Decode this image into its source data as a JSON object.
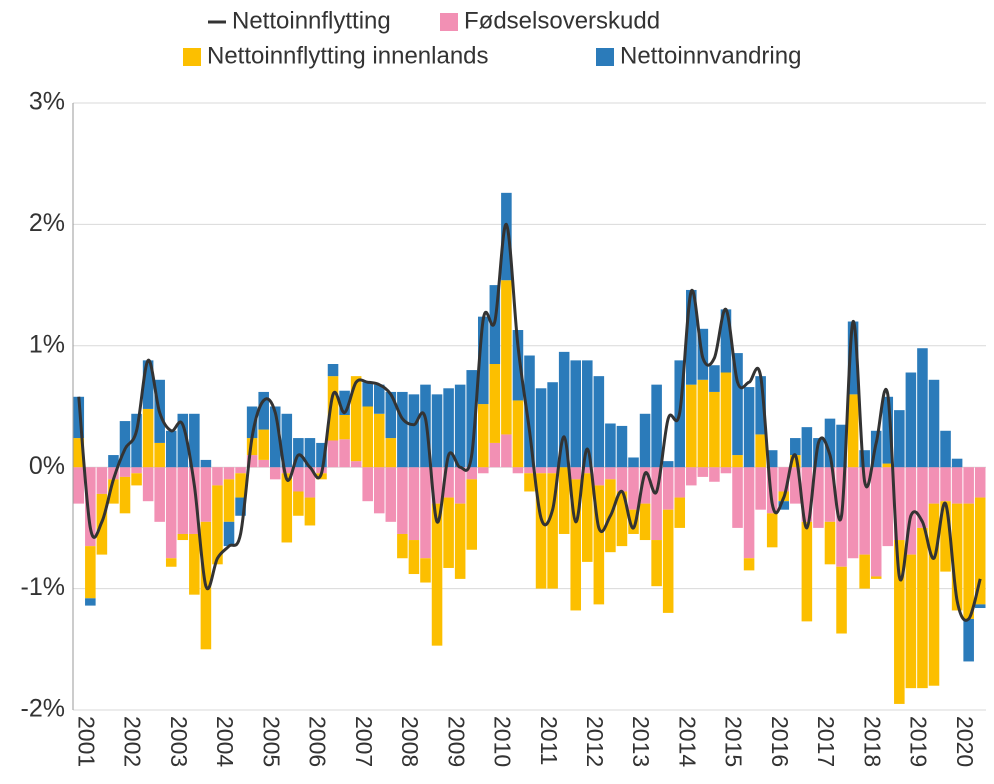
{
  "chart_data": {
    "type": "bar",
    "stacked": true,
    "categories": [
      "2001",
      null,
      null,
      null,
      "2002",
      null,
      null,
      null,
      "2003",
      null,
      null,
      null,
      "2004",
      null,
      null,
      null,
      "2005",
      null,
      null,
      null,
      "2006",
      null,
      null,
      null,
      "2007",
      null,
      null,
      null,
      "2008",
      null,
      null,
      null,
      "2009",
      null,
      null,
      null,
      "2010",
      null,
      null,
      null,
      "2011",
      null,
      null,
      null,
      "2012",
      null,
      null,
      null,
      "2013",
      null,
      null,
      null,
      "2014",
      null,
      null,
      null,
      "2015",
      null,
      null,
      null,
      "2016",
      null,
      null,
      null,
      "2017",
      null,
      null,
      null,
      "2018",
      null,
      null,
      null,
      "2019",
      null,
      null,
      null,
      "2020",
      null,
      null
    ],
    "series": [
      {
        "name": "Nettoinnflytting",
        "type": "line",
        "color": "#333333",
        "values": [
          0.58,
          -0.5,
          -0.45,
          -0.1,
          0.15,
          0.3,
          0.88,
          0.45,
          0.3,
          0.35,
          -0.15,
          -0.98,
          -0.75,
          -0.65,
          -0.55,
          0.25,
          0.55,
          0.45,
          -0.1,
          0.1,
          0,
          -0.05,
          0.6,
          0.45,
          0.7,
          0.7,
          0.68,
          0.6,
          0.4,
          0.35,
          0.4,
          -0.45,
          0.1,
          0,
          0.1,
          1.22,
          1.2,
          2.0,
          1.0,
          0.3,
          -0.42,
          -0.35,
          0.25,
          -0.45,
          0.15,
          -0.5,
          -0.4,
          -0.2,
          -0.5,
          -0.05,
          -0.2,
          0.4,
          0.45,
          1.45,
          0.9,
          0.9,
          1.3,
          0.7,
          0.7,
          0.75,
          -0.3,
          -0.25,
          0.1,
          -0.5,
          0.2,
          0.1,
          -0.4,
          1.2,
          -0.12,
          0.2,
          0.6,
          -0.9,
          -0.4,
          -0.45,
          -0.75,
          -0.3,
          -1.1,
          -1.25,
          -0.92
        ]
      },
      {
        "name": "Fødselsoverskudd",
        "type": "bar",
        "color": "#f290b4",
        "values": [
          -0.3,
          -0.65,
          -0.22,
          -0.1,
          -0.08,
          -0.05,
          -0.28,
          -0.45,
          -0.75,
          -0.55,
          -0.55,
          -0.45,
          -0.15,
          -0.1,
          -0.05,
          0.1,
          0.06,
          -0.1,
          -0.05,
          -0.2,
          -0.25,
          -0.05,
          0.22,
          0.23,
          0.05,
          -0.28,
          -0.38,
          -0.45,
          -0.55,
          -0.6,
          -0.75,
          -0.3,
          -0.25,
          -0.3,
          -0.1,
          -0.05,
          0.2,
          0.27,
          -0.05,
          -0.05,
          -0.05,
          -0.05,
          0,
          -0.1,
          -0.05,
          -0.15,
          -0.1,
          -0.2,
          -0.35,
          -0.3,
          -0.6,
          -0.35,
          -0.25,
          -0.15,
          -0.08,
          -0.12,
          -0.05,
          -0.5,
          -0.75,
          -0.35,
          -0.38,
          -0.2,
          -0.3,
          -0.45,
          -0.5,
          -0.45,
          -0.82,
          -0.75,
          -0.72,
          -0.9,
          -0.65,
          -0.6,
          -0.72,
          -0.5,
          -0.3,
          -0.28,
          -0.3,
          -0.3,
          -0.25
        ]
      },
      {
        "name": "Nettoinnflytting innenlands",
        "type": "bar",
        "color": "#fcbf00",
        "values": [
          0.24,
          -0.43,
          -0.5,
          -0.2,
          -0.3,
          -0.1,
          0.48,
          0.2,
          -0.07,
          -0.05,
          -0.5,
          -1.05,
          -0.65,
          -0.35,
          -0.2,
          0.14,
          0.25,
          0,
          -0.57,
          -0.2,
          -0.23,
          -0.05,
          0.53,
          0.2,
          0.7,
          0.5,
          0.44,
          0.24,
          -0.2,
          -0.28,
          -0.2,
          -1.17,
          -0.58,
          -0.62,
          -0.58,
          0.52,
          0.65,
          1.27,
          0.55,
          -0.15,
          -0.95,
          -0.95,
          -0.55,
          -1.08,
          -0.73,
          -0.98,
          -0.6,
          -0.45,
          -0.2,
          -0.3,
          -0.38,
          -0.85,
          -0.25,
          0.68,
          0.72,
          0.62,
          0.78,
          0.1,
          -0.1,
          0.27,
          -0.28,
          -0.08,
          0.1,
          -0.82,
          0,
          -0.35,
          -0.55,
          0.6,
          -0.28,
          -0.02,
          0.03,
          -1.35,
          -1.1,
          -1.32,
          -1.5,
          -0.58,
          -0.88,
          -0.95,
          -0.88
        ]
      },
      {
        "name": "Nettoinnvandring",
        "type": "bar",
        "color": "#2b7bba",
        "values": [
          0.34,
          -0.06,
          0,
          0.1,
          0.38,
          0.44,
          0.4,
          0.52,
          0.3,
          0.44,
          0.44,
          0.06,
          0,
          -0.2,
          -0.15,
          0.26,
          0.31,
          0.5,
          0.44,
          0.24,
          0.24,
          0.2,
          0.1,
          0.2,
          0,
          0.2,
          0.24,
          0.38,
          0.62,
          0.6,
          0.68,
          0.6,
          0.65,
          0.68,
          0.8,
          0.72,
          0.65,
          0.72,
          0.58,
          0.92,
          0.65,
          0.7,
          0.95,
          0.88,
          0.88,
          0.75,
          0.36,
          0.34,
          0.08,
          0.44,
          0.68,
          0.05,
          0.88,
          0.78,
          0.42,
          0.22,
          0.52,
          0.84,
          0.66,
          0.48,
          0.14,
          -0.07,
          0.14,
          0.33,
          0.24,
          0.4,
          0.35,
          0.6,
          0.14,
          0.3,
          0.55,
          0.47,
          0.78,
          0.98,
          0.72,
          0.3,
          0.07,
          -0.35,
          -0.03
        ]
      }
    ],
    "ylim": [
      -2,
      3
    ],
    "yticks": [
      {
        "value": -2,
        "label": "-2%"
      },
      {
        "value": -1,
        "label": "-1%"
      },
      {
        "value": 0,
        "label": "0%"
      },
      {
        "value": 1,
        "label": "1%"
      },
      {
        "value": 2,
        "label": "2%"
      },
      {
        "value": 3,
        "label": "3%"
      }
    ],
    "grid": true,
    "legend": "top"
  }
}
